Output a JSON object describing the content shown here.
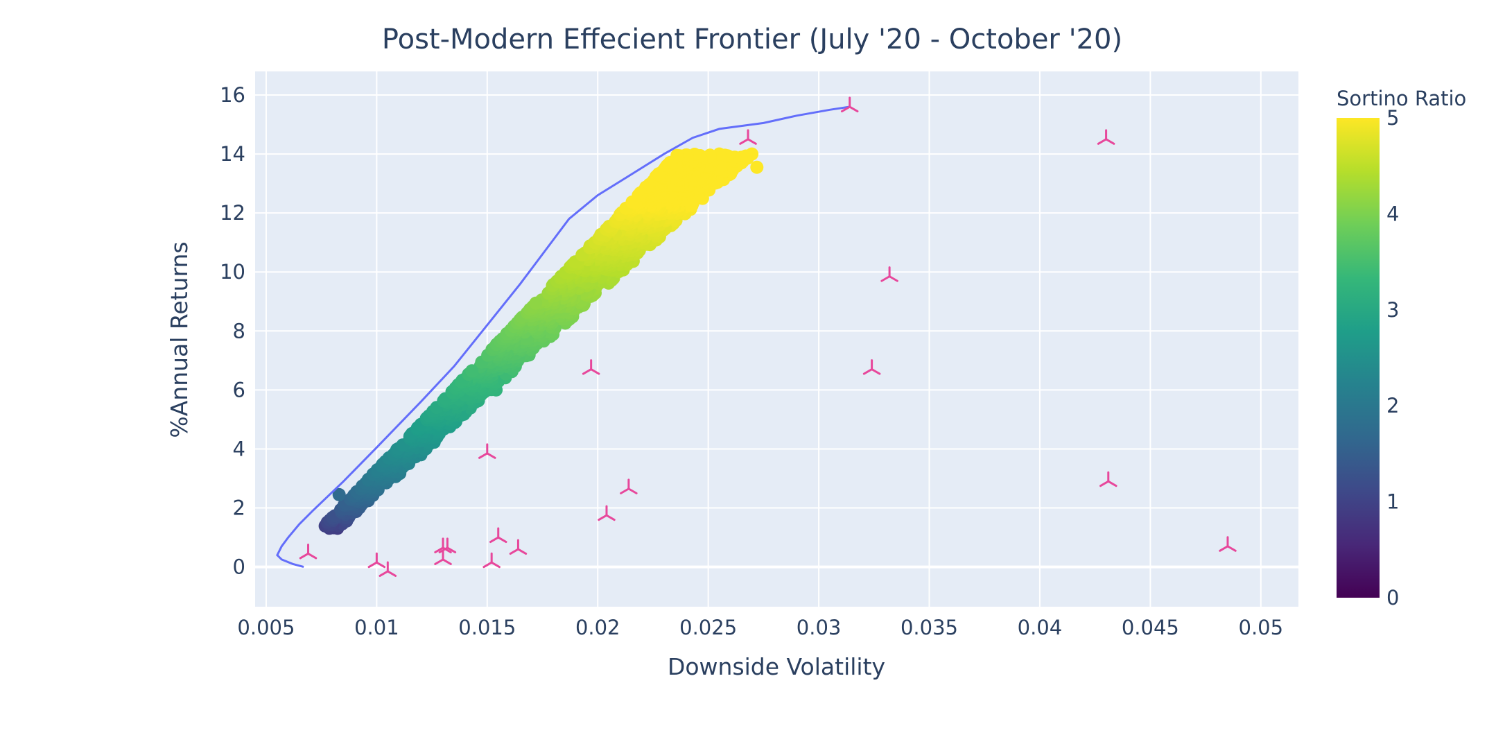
{
  "chart_data": {
    "type": "scatter",
    "title": "Post-Modern Effecient Frontier (July '20 - October '20)",
    "xlabel": "Downside Volatility",
    "ylabel": "%Annual Returns",
    "xlim": [
      0.0045,
      0.0517
    ],
    "ylim": [
      -1.35,
      16.8
    ],
    "xticks": [
      0.005,
      0.01,
      0.015,
      0.02,
      0.025,
      0.03,
      0.035,
      0.04,
      0.045,
      0.05
    ],
    "xtick_labels": [
      "0.005",
      "0.01",
      "0.015",
      "0.02",
      "0.025",
      "0.03",
      "0.035",
      "0.04",
      "0.045",
      "0.05"
    ],
    "yticks": [
      0,
      2,
      4,
      6,
      8,
      10,
      12,
      14,
      16
    ],
    "ytick_labels": [
      "0",
      "2",
      "4",
      "6",
      "8",
      "10",
      "12",
      "14",
      "16"
    ],
    "grid": true,
    "plot_background": "#e5ecf6",
    "colorbar": {
      "title": "Sortino Ratio",
      "range": [
        0,
        5
      ],
      "ticks": [
        0,
        1,
        2,
        3,
        4,
        5
      ],
      "tick_labels": [
        "0",
        "1",
        "2",
        "3",
        "4",
        "5"
      ],
      "colorscale": [
        "#440154",
        "#482878",
        "#3e4989",
        "#31688e",
        "#26828e",
        "#1f9e89",
        "#35b779",
        "#6ece58",
        "#b5de2b",
        "#fde725"
      ]
    },
    "series": [
      {
        "type": "line",
        "color": "#636efa",
        "points": [
          [
            0.0067,
            0.0
          ],
          [
            0.0062,
            0.1
          ],
          [
            0.0057,
            0.25
          ],
          [
            0.0055,
            0.4
          ],
          [
            0.0057,
            0.7
          ],
          [
            0.006,
            1.0
          ],
          [
            0.0065,
            1.45
          ],
          [
            0.0071,
            1.9
          ],
          [
            0.0085,
            2.9
          ],
          [
            0.01,
            4.05
          ],
          [
            0.012,
            5.6
          ],
          [
            0.0135,
            6.8
          ],
          [
            0.015,
            8.2
          ],
          [
            0.0165,
            9.6
          ],
          [
            0.018,
            11.1
          ],
          [
            0.0187,
            11.8
          ],
          [
            0.02,
            12.6
          ],
          [
            0.0215,
            13.3
          ],
          [
            0.023,
            14.0
          ],
          [
            0.0243,
            14.55
          ],
          [
            0.0255,
            14.85
          ],
          [
            0.0275,
            15.05
          ],
          [
            0.029,
            15.3
          ],
          [
            0.0305,
            15.5
          ],
          [
            0.0314,
            15.6
          ]
        ]
      },
      {
        "type": "markers",
        "marker": "tri-down",
        "color": "#e7479b",
        "points": [
          [
            0.0314,
            15.6
          ],
          [
            0.0268,
            14.5
          ],
          [
            0.043,
            14.5
          ],
          [
            0.0332,
            9.85
          ],
          [
            0.0197,
            6.7
          ],
          [
            0.0324,
            6.7
          ],
          [
            0.015,
            3.85
          ],
          [
            0.0214,
            2.65
          ],
          [
            0.0431,
            2.9
          ],
          [
            0.0204,
            1.75
          ],
          [
            0.0069,
            0.45
          ],
          [
            0.01,
            0.15
          ],
          [
            0.0105,
            -0.15
          ],
          [
            0.013,
            0.25
          ],
          [
            0.013,
            0.65
          ],
          [
            0.0132,
            0.65
          ],
          [
            0.0152,
            0.15
          ],
          [
            0.0155,
            1.0
          ],
          [
            0.0164,
            0.6
          ],
          [
            0.0485,
            0.7
          ]
        ]
      }
    ],
    "cloud": {
      "description_points": [
        [
          0.0078,
          1.35
        ],
        [
          0.0083,
          2.45
        ],
        [
          0.009,
          1.95
        ],
        [
          0.0095,
          2.25
        ],
        [
          0.012,
          3.8
        ],
        [
          0.0154,
          6.0
        ],
        [
          0.0144,
          5.9
        ],
        [
          0.0272,
          13.55
        ],
        [
          0.0265,
          13.7
        ],
        [
          0.0255,
          14.0
        ]
      ],
      "count": 1600
    }
  }
}
